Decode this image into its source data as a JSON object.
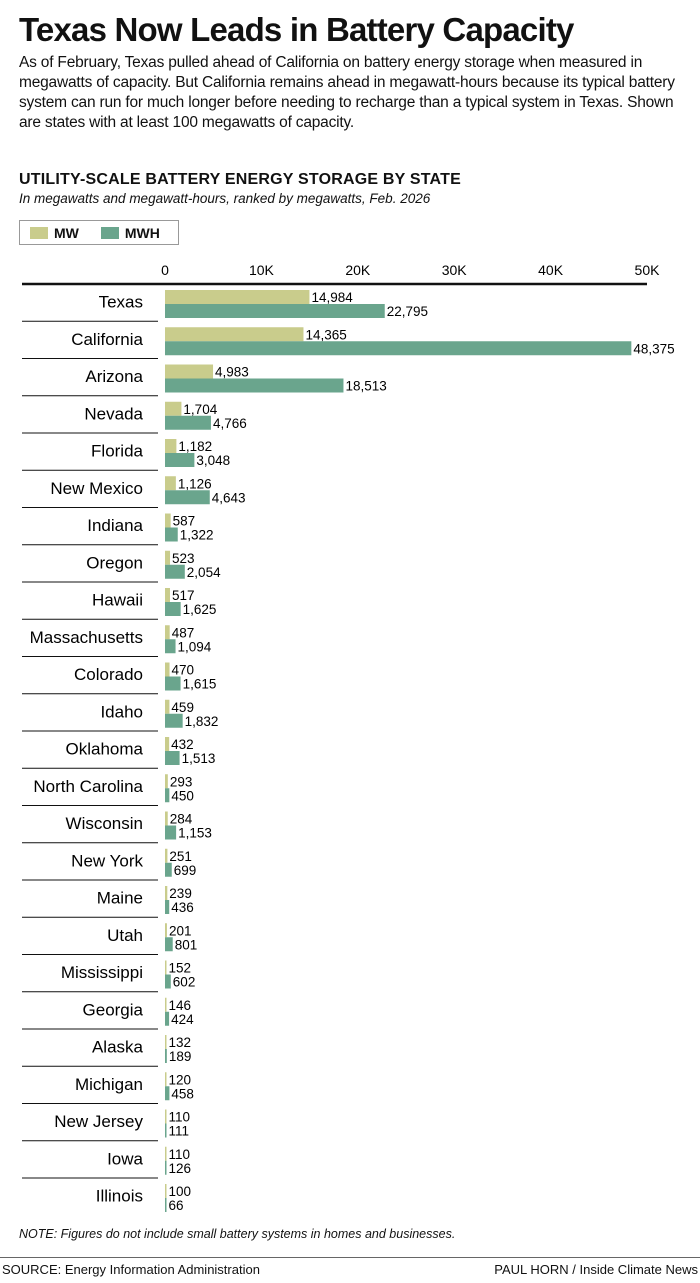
{
  "header": {
    "title": "Texas Now Leads in Battery Capacity",
    "intro": "As of February, Texas pulled ahead of California on battery energy storage when measured in megawatts of capacity. But California remains ahead in megawatt-hours because its typical battery system can run for much longer before needing to recharge than a typical system in Texas. Shown are states with at least 100 megawatts of capacity."
  },
  "chart_header": {
    "title": "UTILITY-SCALE BATTERY ENERGY STORAGE BY STATE",
    "subtitle": "In megawatts and megawatt-hours, ranked by megawatts,  Feb. 2026"
  },
  "legend": {
    "mw_label": "MW",
    "mwh_label": "MWH"
  },
  "colors": {
    "mw": "#c9cc8c",
    "mwh": "#6aa58d"
  },
  "chart_data": {
    "type": "bar",
    "orientation": "horizontal",
    "xlim": [
      0,
      50000
    ],
    "ticks": [
      0,
      10000,
      20000,
      30000,
      40000,
      50000
    ],
    "tick_labels": [
      "0",
      "10K",
      "20K",
      "30K",
      "40K",
      "50K"
    ],
    "categories": [
      "Texas",
      "California",
      "Arizona",
      "Nevada",
      "Florida",
      "New Mexico",
      "Indiana",
      "Oregon",
      "Hawaii",
      "Massachusetts",
      "Colorado",
      "Idaho",
      "Oklahoma",
      "North Carolina",
      "Wisconsin",
      "New York",
      "Maine",
      "Utah",
      "Mississippi",
      "Georgia",
      "Alaska",
      "Michigan",
      "New Jersey",
      "Iowa",
      "Illinois"
    ],
    "series": [
      {
        "name": "MW",
        "values": [
          14984,
          14365,
          4983,
          1704,
          1182,
          1126,
          587,
          523,
          517,
          487,
          470,
          459,
          432,
          293,
          284,
          251,
          239,
          201,
          152,
          146,
          132,
          120,
          110,
          110,
          100
        ]
      },
      {
        "name": "MWH",
        "values": [
          22795,
          48375,
          18513,
          4766,
          3048,
          4643,
          1322,
          2054,
          1625,
          1094,
          1615,
          1832,
          1513,
          450,
          1153,
          699,
          436,
          801,
          602,
          424,
          189,
          458,
          111,
          126,
          66
        ]
      }
    ]
  },
  "footer": {
    "note": "NOTE: Figures do not include small battery systems in homes and businesses.",
    "source": "SOURCE: Energy Information Administration",
    "credit": "PAUL HORN / Inside Climate News"
  }
}
